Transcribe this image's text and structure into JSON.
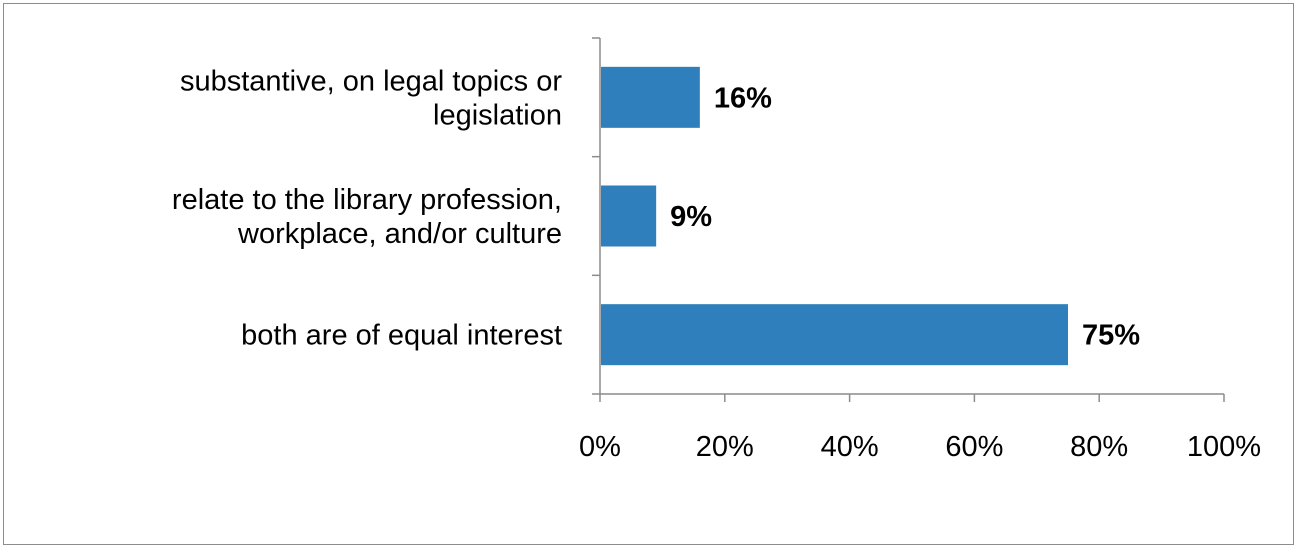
{
  "chart_data": {
    "type": "bar",
    "orientation": "horizontal",
    "categories": [
      [
        "substantive, on legal topics or",
        "legislation"
      ],
      [
        "relate to the library profession,",
        "workplace, and/or culture"
      ],
      [
        "both are of equal interest"
      ]
    ],
    "values": [
      16,
      9,
      75
    ],
    "data_labels": [
      "16%",
      "9%",
      "75%"
    ],
    "xlim": [
      0,
      100
    ],
    "x_ticks": [
      0,
      20,
      40,
      60,
      80,
      100
    ],
    "x_tick_labels": [
      "0%",
      "20%",
      "40%",
      "60%",
      "80%",
      "100%"
    ],
    "bar_color": "#2E7FBB",
    "grid": false,
    "legend": "none"
  }
}
